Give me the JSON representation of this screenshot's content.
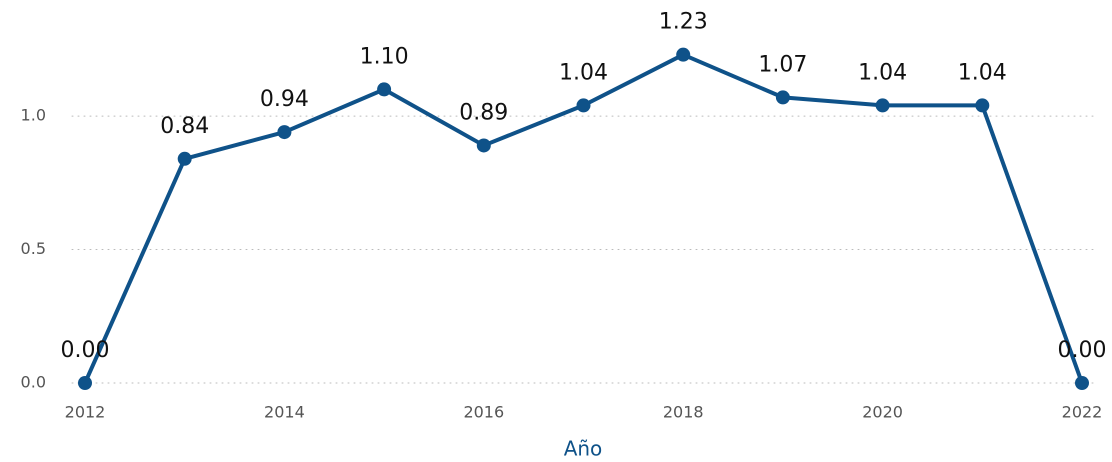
{
  "chart_data": {
    "type": "line",
    "x_label": "Año",
    "x": [
      2012,
      2013,
      2014,
      2015,
      2016,
      2017,
      2018,
      2019,
      2020,
      2021,
      2022
    ],
    "series": [
      {
        "name": null,
        "color": "#0f5289",
        "values": [
          0,
          0.84,
          0.94,
          1.1,
          0.89,
          1.04,
          1.23,
          1.07,
          1.04,
          1.04,
          0
        ],
        "value_labels": [
          "0.00",
          "0.84",
          "0.94",
          "1.10",
          "0.89",
          "1.04",
          "1.23",
          "1.07",
          "1.04",
          "1.04",
          "0.00"
        ]
      }
    ],
    "xlim": [
      2012,
      2022
    ],
    "xticks": [
      2012,
      2014,
      2016,
      2018,
      2020,
      2022
    ],
    "ylim": [
      0,
      1.3
    ],
    "yticks": [
      {
        "value": 0,
        "label": "0.0"
      },
      {
        "value": 0.5,
        "label": "0.5"
      },
      {
        "value": 1.0,
        "label": "1.0"
      }
    ],
    "grid": true
  }
}
